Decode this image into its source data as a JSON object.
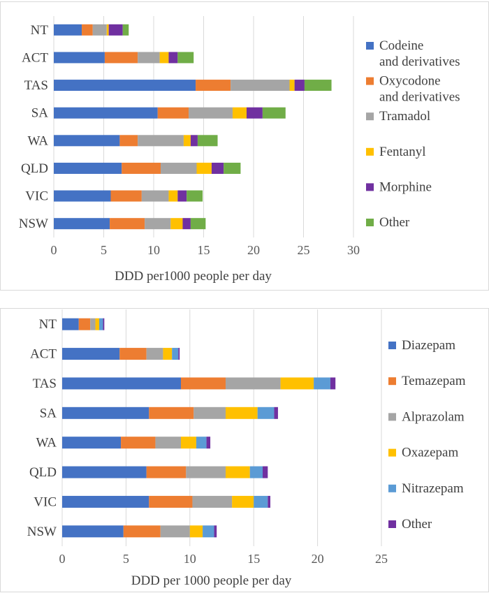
{
  "chart_data": [
    {
      "type": "bar",
      "orientation": "horizontal",
      "stacked": true,
      "title": "",
      "xlabel": "DDD per1000 people per day",
      "ylabel": "",
      "xlim": [
        0,
        30
      ],
      "xticks": [
        "0",
        "5",
        "10",
        "15",
        "20",
        "25",
        "30"
      ],
      "categories": [
        "NT",
        "ACT",
        "TAS",
        "SA",
        "WA",
        "QLD",
        "VIC",
        "NSW"
      ],
      "series": [
        {
          "name": "Codeine and derivatives",
          "color": "#4472C4",
          "values": [
            2.8,
            5.1,
            14.2,
            10.4,
            6.6,
            6.8,
            5.7,
            5.6
          ]
        },
        {
          "name": "Oxycodone and derivatives",
          "color": "#ED7D31",
          "values": [
            1.1,
            3.3,
            3.5,
            3.1,
            1.8,
            3.9,
            3.1,
            3.5
          ]
        },
        {
          "name": "Tramadol",
          "color": "#A5A5A5",
          "values": [
            1.4,
            2.2,
            5.9,
            4.4,
            4.6,
            3.6,
            2.7,
            2.6
          ]
        },
        {
          "name": "Fentanyl",
          "color": "#FFC000",
          "values": [
            0.2,
            0.9,
            0.5,
            1.4,
            0.7,
            1.5,
            0.9,
            1.2
          ]
        },
        {
          "name": "Morphine",
          "color": "#7030A0",
          "values": [
            1.4,
            0.9,
            1.0,
            1.6,
            0.7,
            1.2,
            0.9,
            0.8
          ]
        },
        {
          "name": "Other",
          "color": "#70AD47",
          "values": [
            0.6,
            1.6,
            2.7,
            2.3,
            2.0,
            1.7,
            1.6,
            1.5
          ]
        }
      ],
      "legend_position": "right"
    },
    {
      "type": "bar",
      "orientation": "horizontal",
      "stacked": true,
      "title": "",
      "xlabel": "DDD per 1000 people per day",
      "ylabel": "",
      "xlim": [
        0,
        25
      ],
      "xticks": [
        "0",
        "5",
        "10",
        "15",
        "20",
        "25"
      ],
      "categories": [
        "NT",
        "ACT",
        "TAS",
        "SA",
        "WA",
        "QLD",
        "VIC",
        "NSW"
      ],
      "series": [
        {
          "name": "Diazepam",
          "color": "#4472C4",
          "values": [
            1.3,
            4.5,
            9.3,
            6.8,
            4.6,
            6.6,
            6.8,
            4.8
          ]
        },
        {
          "name": "Temazepam",
          "color": "#ED7D31",
          "values": [
            0.9,
            2.1,
            3.5,
            3.5,
            2.7,
            3.1,
            3.4,
            2.9
          ]
        },
        {
          "name": "Alprazolam",
          "color": "#A5A5A5",
          "values": [
            0.4,
            1.3,
            4.3,
            2.5,
            2.0,
            3.1,
            3.1,
            2.3
          ]
        },
        {
          "name": "Oxazepam",
          "color": "#FFC000",
          "values": [
            0.3,
            0.7,
            2.6,
            2.5,
            1.2,
            1.9,
            1.7,
            1.0
          ]
        },
        {
          "name": "Nitrazepam",
          "color": "#5B9BD5",
          "values": [
            0.3,
            0.5,
            1.3,
            1.3,
            0.8,
            1.0,
            1.1,
            0.9
          ]
        },
        {
          "name": "Other",
          "color": "#7030A0",
          "values": [
            0.1,
            0.1,
            0.4,
            0.3,
            0.3,
            0.4,
            0.2,
            0.2
          ]
        }
      ],
      "legend_position": "right"
    }
  ]
}
